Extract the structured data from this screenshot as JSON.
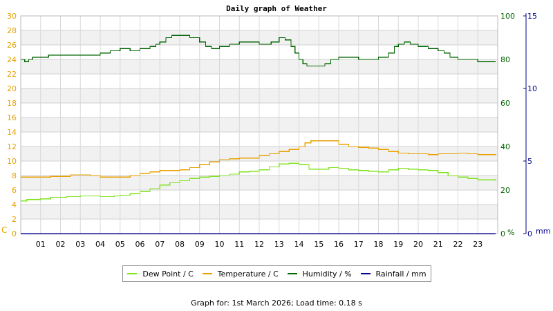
{
  "chart_data": {
    "type": "line",
    "title": "Daily graph of Weather",
    "x_ticks": [
      "01",
      "02",
      "03",
      "04",
      "05",
      "06",
      "07",
      "08",
      "09",
      "10",
      "11",
      "12",
      "13",
      "14",
      "15",
      "16",
      "17",
      "18",
      "19",
      "20",
      "21",
      "22",
      "23"
    ],
    "x_range_hours": [
      0,
      24
    ],
    "left_axis": {
      "unit": "C",
      "ylim": [
        0,
        30
      ],
      "ticks": [
        0,
        2,
        4,
        6,
        8,
        10,
        12,
        14,
        16,
        18,
        20,
        22,
        24,
        26,
        28,
        30
      ],
      "color": "#e8a000"
    },
    "humidity_axis": {
      "unit": "%",
      "ylim": [
        0,
        100
      ],
      "ticks": [
        0,
        20,
        40,
        60,
        80,
        100
      ],
      "color": "#006400"
    },
    "rainfall_axis": {
      "unit": "mm",
      "ylim": [
        0,
        15
      ],
      "ticks": [
        0,
        5,
        10,
        15
      ],
      "color": "#00008b"
    },
    "grid": true,
    "series": [
      {
        "name": "Dew Point / C",
        "axis": "left",
        "color": "#7fe31e",
        "points": [
          [
            0,
            4.5
          ],
          [
            0.3,
            4.7
          ],
          [
            1,
            4.8
          ],
          [
            1.5,
            5.0
          ],
          [
            2.3,
            5.1
          ],
          [
            3,
            5.2
          ],
          [
            3.5,
            5.2
          ],
          [
            4,
            5.1
          ],
          [
            4.7,
            5.2
          ],
          [
            5,
            5.3
          ],
          [
            5.5,
            5.5
          ],
          [
            6,
            5.8
          ],
          [
            6.5,
            6.2
          ],
          [
            7,
            6.7
          ],
          [
            7.5,
            7.0
          ],
          [
            8,
            7.3
          ],
          [
            8.5,
            7.6
          ],
          [
            9,
            7.8
          ],
          [
            9.5,
            7.9
          ],
          [
            10,
            8.0
          ],
          [
            10.5,
            8.2
          ],
          [
            11,
            8.5
          ],
          [
            11.5,
            8.6
          ],
          [
            12,
            8.8
          ],
          [
            12.5,
            9.2
          ],
          [
            13,
            9.6
          ],
          [
            13.5,
            9.7
          ],
          [
            14,
            9.5
          ],
          [
            14.5,
            8.9
          ],
          [
            15,
            8.9
          ],
          [
            15.5,
            9.1
          ],
          [
            16,
            9.0
          ],
          [
            16.5,
            8.8
          ],
          [
            17,
            8.7
          ],
          [
            17.5,
            8.6
          ],
          [
            18,
            8.5
          ],
          [
            18.5,
            8.8
          ],
          [
            19,
            9.0
          ],
          [
            19.5,
            8.9
          ],
          [
            20,
            8.8
          ],
          [
            20.5,
            8.7
          ],
          [
            21,
            8.4
          ],
          [
            21.5,
            8.0
          ],
          [
            22,
            7.8
          ],
          [
            22.5,
            7.6
          ],
          [
            23,
            7.4
          ],
          [
            23.9,
            7.3
          ]
        ]
      },
      {
        "name": "Temperature / C",
        "axis": "left",
        "color": "#e8a000",
        "points": [
          [
            0,
            7.8
          ],
          [
            1,
            7.8
          ],
          [
            1.5,
            7.9
          ],
          [
            2.5,
            8.1
          ],
          [
            3.2,
            8.1
          ],
          [
            3.5,
            8.0
          ],
          [
            4,
            7.8
          ],
          [
            4.7,
            7.8
          ],
          [
            5,
            7.8
          ],
          [
            5.5,
            8.0
          ],
          [
            6,
            8.3
          ],
          [
            6.5,
            8.5
          ],
          [
            7,
            8.7
          ],
          [
            7.7,
            8.7
          ],
          [
            8,
            8.8
          ],
          [
            8.5,
            9.1
          ],
          [
            9,
            9.5
          ],
          [
            9.5,
            9.9
          ],
          [
            10,
            10.2
          ],
          [
            10.5,
            10.3
          ],
          [
            11,
            10.4
          ],
          [
            11.5,
            10.4
          ],
          [
            12,
            10.8
          ],
          [
            12.5,
            11.0
          ],
          [
            13,
            11.3
          ],
          [
            13.5,
            11.6
          ],
          [
            14,
            12.0
          ],
          [
            14.3,
            12.5
          ],
          [
            14.6,
            12.8
          ],
          [
            15,
            12.8
          ],
          [
            15.5,
            12.8
          ],
          [
            16,
            12.3
          ],
          [
            16.5,
            12.0
          ],
          [
            17,
            11.9
          ],
          [
            17.5,
            11.8
          ],
          [
            18,
            11.6
          ],
          [
            18.5,
            11.3
          ],
          [
            19,
            11.1
          ],
          [
            19.5,
            11.0
          ],
          [
            20,
            11.0
          ],
          [
            20.5,
            10.9
          ],
          [
            21,
            11.0
          ],
          [
            21.5,
            11.0
          ],
          [
            22,
            11.1
          ],
          [
            22.5,
            11.0
          ],
          [
            23,
            10.9
          ],
          [
            23.9,
            10.8
          ]
        ]
      },
      {
        "name": "Humidity / %",
        "axis": "humidity",
        "color": "#006400",
        "points": [
          [
            0,
            80
          ],
          [
            0.2,
            79
          ],
          [
            0.4,
            80
          ],
          [
            0.6,
            81
          ],
          [
            1,
            81
          ],
          [
            1.4,
            82
          ],
          [
            2,
            82
          ],
          [
            3,
            82
          ],
          [
            3.7,
            82
          ],
          [
            4,
            83
          ],
          [
            4.5,
            84
          ],
          [
            5,
            85
          ],
          [
            5.5,
            84
          ],
          [
            6,
            85
          ],
          [
            6.5,
            86
          ],
          [
            6.8,
            87
          ],
          [
            7,
            88
          ],
          [
            7.3,
            90
          ],
          [
            7.6,
            91
          ],
          [
            8,
            91
          ],
          [
            8.5,
            90
          ],
          [
            9,
            88
          ],
          [
            9.3,
            86
          ],
          [
            9.6,
            85
          ],
          [
            10,
            86
          ],
          [
            10.5,
            87
          ],
          [
            11,
            88
          ],
          [
            11.5,
            88
          ],
          [
            12,
            87
          ],
          [
            12.3,
            87
          ],
          [
            12.6,
            88
          ],
          [
            13,
            90
          ],
          [
            13.3,
            89
          ],
          [
            13.6,
            86
          ],
          [
            13.8,
            83
          ],
          [
            14,
            80
          ],
          [
            14.2,
            78
          ],
          [
            14.4,
            77
          ],
          [
            14.7,
            77
          ],
          [
            15,
            77
          ],
          [
            15.3,
            78
          ],
          [
            15.6,
            80
          ],
          [
            16,
            81
          ],
          [
            16.5,
            81
          ],
          [
            17,
            80
          ],
          [
            17.5,
            80
          ],
          [
            18,
            81
          ],
          [
            18.5,
            83
          ],
          [
            18.8,
            86
          ],
          [
            19,
            87
          ],
          [
            19.3,
            88
          ],
          [
            19.6,
            87
          ],
          [
            20,
            86
          ],
          [
            20.5,
            85
          ],
          [
            21,
            84
          ],
          [
            21.3,
            83
          ],
          [
            21.6,
            81
          ],
          [
            22,
            80
          ],
          [
            22.5,
            80
          ],
          [
            23,
            79
          ],
          [
            23.9,
            79
          ]
        ]
      },
      {
        "name": "Rainfall / mm",
        "axis": "rainfall",
        "color": "#00008b",
        "points": [
          [
            0,
            0
          ],
          [
            23.9,
            0
          ]
        ]
      }
    ]
  },
  "footer": "Graph for: 1st March 2026; Load time: 0.18 s"
}
